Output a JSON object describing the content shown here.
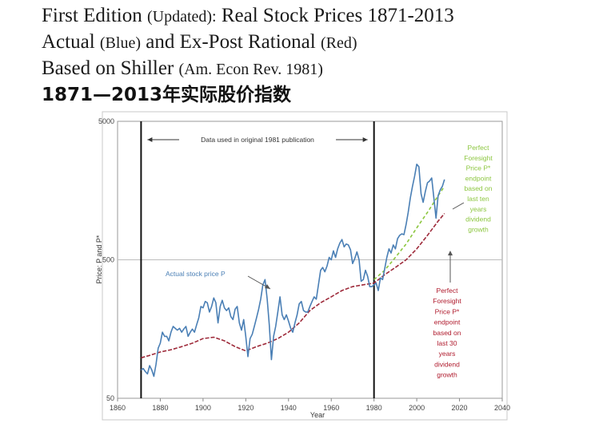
{
  "heading": {
    "line1_main": "First Edition",
    "line1_small": "(Updated):",
    "line1_rest": "Real Stock Prices 1871-2013",
    "line2_main": "Actual",
    "line2_small1": "(Blue)",
    "line2_mid": "and Ex-Post Rational",
    "line2_small2": "(Red)",
    "line3_main": "Based on Shiller",
    "line3_small": "(Am. Econ Rev. 1981)",
    "line4_cn": "1871—2013年实际股价指数"
  },
  "chart_data": {
    "type": "line",
    "xlabel": "Year",
    "ylabel": "Price: P and P*",
    "xlim": [
      1860,
      2040
    ],
    "ylim": [
      50,
      5000
    ],
    "yscale": "log",
    "xticks": [
      "1860",
      "1880",
      "1900",
      "1920",
      "1940",
      "1960",
      "1980",
      "2000",
      "2020",
      "2040"
    ],
    "yticks": [
      "5000",
      "500",
      "50"
    ],
    "xtick_values": [
      1860,
      1880,
      1900,
      1920,
      1940,
      1960,
      1980,
      2000,
      2020,
      2040
    ],
    "ytick_values": [
      5000,
      500,
      50
    ],
    "vlines": [
      1871,
      1980
    ],
    "range_label": "Data used in original 1981 publication",
    "colors": {
      "actual": "#4a7fb5",
      "rational_30": "#9e2a3a",
      "rational_10": "#8cc63f",
      "annotation_green": "#8cc63f",
      "annotation_red": "#b01c2e"
    },
    "annotations": {
      "actual": "Actual stock price P",
      "green": [
        "Perfect",
        "Foresight",
        "Price P*",
        "endpoint",
        "based on",
        "last ten",
        "years",
        "dividend",
        "growth"
      ],
      "red": [
        "Perfect",
        "Foresight",
        "Price P*",
        "endpoint",
        "based on",
        "last 30",
        "years",
        "dividend",
        "growth"
      ]
    },
    "series": [
      {
        "key": "actual",
        "x": [
          1871,
          1872,
          1873,
          1874,
          1875,
          1876,
          1877,
          1878,
          1879,
          1880,
          1881,
          1882,
          1883,
          1884,
          1885,
          1886,
          1887,
          1888,
          1889,
          1890,
          1891,
          1892,
          1893,
          1894,
          1895,
          1896,
          1897,
          1898,
          1899,
          1900,
          1901,
          1902,
          1903,
          1904,
          1905,
          1906,
          1907,
          1908,
          1909,
          1910,
          1911,
          1912,
          1913,
          1914,
          1915,
          1916,
          1917,
          1918,
          1919,
          1920,
          1921,
          1922,
          1923,
          1924,
          1925,
          1926,
          1927,
          1928,
          1929,
          1930,
          1931,
          1932,
          1933,
          1934,
          1935,
          1936,
          1937,
          1938,
          1939,
          1940,
          1941,
          1942,
          1943,
          1944,
          1945,
          1946,
          1947,
          1948,
          1949,
          1950,
          1951,
          1952,
          1953,
          1954,
          1955,
          1956,
          1957,
          1958,
          1959,
          1960,
          1961,
          1962,
          1963,
          1964,
          1965,
          1966,
          1967,
          1968,
          1969,
          1970,
          1971,
          1972,
          1973,
          1974,
          1975,
          1976,
          1977,
          1978,
          1979,
          1980,
          1981,
          1982,
          1983,
          1984,
          1985,
          1986,
          1987,
          1988,
          1989,
          1990,
          1991,
          1992,
          1993,
          1994,
          1995,
          1996,
          1997,
          1998,
          1999,
          2000,
          2001,
          2002,
          2003,
          2004,
          2005,
          2006,
          2007,
          2008,
          2009,
          2010,
          2011,
          2012,
          2013
        ],
        "y": [
          80,
          82,
          78,
          75,
          86,
          80,
          72,
          88,
          115,
          125,
          150,
          140,
          140,
          130,
          150,
          165,
          160,
          155,
          160,
          150,
          158,
          165,
          140,
          150,
          158,
          150,
          170,
          190,
          230,
          225,
          250,
          245,
          210,
          230,
          265,
          245,
          175,
          230,
          255,
          225,
          215,
          225,
          195,
          185,
          220,
          230,
          175,
          155,
          185,
          140,
          100,
          135,
          145,
          165,
          190,
          220,
          260,
          330,
          360,
          260,
          170,
          95,
          140,
          165,
          210,
          270,
          200,
          185,
          200,
          180,
          160,
          150,
          175,
          200,
          240,
          250,
          215,
          210,
          210,
          230,
          250,
          270,
          260,
          330,
          420,
          440,
          410,
          450,
          520,
          500,
          580,
          520,
          600,
          660,
          700,
          620,
          650,
          640,
          590,
          470,
          510,
          570,
          500,
          350,
          360,
          420,
          380,
          320,
          320,
          330,
          340,
          300,
          370,
          360,
          430,
          520,
          600,
          560,
          640,
          600,
          710,
          750,
          770,
          760,
          900,
          1100,
          1400,
          1700,
          2000,
          2450,
          2350,
          1500,
          1300,
          1550,
          1800,
          1850,
          1950,
          1400,
          1000,
          1450,
          1600,
          1700,
          1900
        ]
      },
      {
        "key": "rational_30",
        "x": [
          1871,
          1875,
          1880,
          1885,
          1890,
          1895,
          1900,
          1905,
          1910,
          1915,
          1920,
          1925,
          1930,
          1935,
          1940,
          1945,
          1950,
          1955,
          1960,
          1965,
          1970,
          1975,
          1980,
          1985,
          1990,
          1995,
          2000,
          2005,
          2010,
          2013
        ],
        "y": [
          98,
          102,
          108,
          112,
          118,
          125,
          135,
          138,
          130,
          118,
          110,
          118,
          125,
          135,
          150,
          175,
          215,
          245,
          270,
          300,
          320,
          330,
          340,
          390,
          440,
          500,
          600,
          750,
          950,
          1080
        ]
      },
      {
        "key": "rational_10",
        "x": [
          1980,
          1985,
          1990,
          1995,
          2000,
          2005,
          2010,
          2013
        ],
        "y": [
          360,
          420,
          520,
          650,
          850,
          1100,
          1450,
          1700
        ]
      }
    ]
  }
}
